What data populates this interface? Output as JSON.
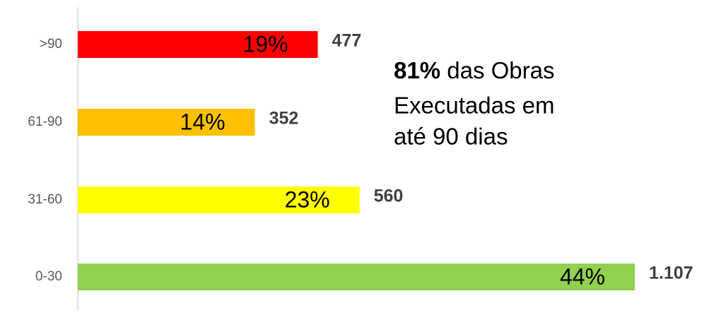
{
  "chart_data": {
    "type": "hbar",
    "categories": [
      ">90",
      "61-90",
      "31-60",
      "0-30"
    ],
    "values": [
      477,
      352,
      560,
      1107
    ],
    "value_labels": [
      "477",
      "352",
      "560",
      "1.107"
    ],
    "colors": [
      "#ff0000",
      "#ffc000",
      "#ffff00",
      "#92d050"
    ],
    "shares": {
      "values": [
        19,
        14,
        23,
        44
      ],
      "labels": [
        "19%",
        "14%",
        "23%",
        "44%"
      ]
    },
    "annotation": {
      "highlight": "81%",
      "lines": [
        "das Obras",
        "Executadas em",
        "até 90 dias"
      ]
    }
  }
}
